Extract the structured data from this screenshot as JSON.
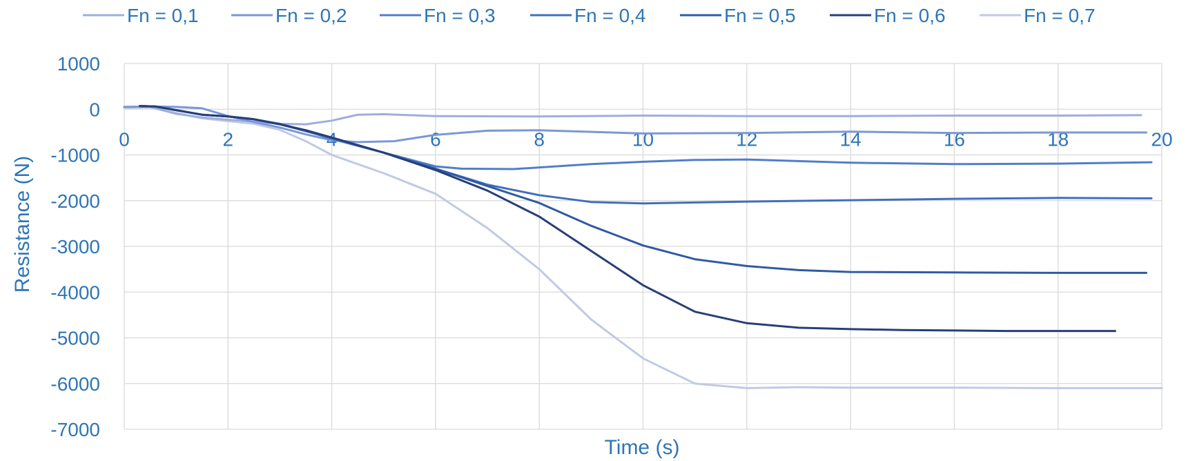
{
  "chart_data": {
    "type": "line",
    "title": "",
    "xlabel": "Time (s)",
    "ylabel": "Resistance (N)",
    "xlim": [
      0,
      20
    ],
    "ylim": [
      -7000,
      1000
    ],
    "x_ticks": [
      0,
      2,
      4,
      6,
      8,
      10,
      12,
      14,
      16,
      18,
      20
    ],
    "y_ticks": [
      1000,
      0,
      -1000,
      -2000,
      -3000,
      -4000,
      -5000,
      -6000,
      -7000
    ],
    "y_tick_labels": [
      "1000",
      "0",
      "-1000",
      "-2000",
      "-3000",
      "-4000",
      "-5000",
      "-6000",
      "-7000"
    ],
    "grid": true,
    "legend_position": "top",
    "series": [
      {
        "name": "Fn = 0,1",
        "color": "#9eaedc",
        "points": [
          [
            0,
            50
          ],
          [
            0.5,
            50
          ],
          [
            1,
            -100
          ],
          [
            1.5,
            -180
          ],
          [
            2,
            -230
          ],
          [
            2.5,
            -270
          ],
          [
            3,
            -320
          ],
          [
            3.5,
            -330
          ],
          [
            4,
            -250
          ],
          [
            4.5,
            -120
          ],
          [
            5,
            -110
          ],
          [
            6,
            -150
          ],
          [
            8,
            -160
          ],
          [
            10,
            -140
          ],
          [
            12,
            -150
          ],
          [
            14,
            -150
          ],
          [
            16,
            -140
          ],
          [
            18,
            -140
          ],
          [
            19.6,
            -130
          ]
        ]
      },
      {
        "name": "Fn = 0,2",
        "color": "#7a97d6",
        "points": [
          [
            0,
            50
          ],
          [
            0.5,
            60
          ],
          [
            1,
            50
          ],
          [
            1.5,
            20
          ],
          [
            2,
            -150
          ],
          [
            2.5,
            -280
          ],
          [
            3,
            -400
          ],
          [
            3.5,
            -550
          ],
          [
            4,
            -680
          ],
          [
            4.5,
            -720
          ],
          [
            5.2,
            -700
          ],
          [
            6,
            -560
          ],
          [
            7,
            -470
          ],
          [
            8,
            -460
          ],
          [
            10,
            -530
          ],
          [
            12,
            -520
          ],
          [
            14,
            -490
          ],
          [
            16,
            -520
          ],
          [
            18,
            -510
          ],
          [
            19.7,
            -510
          ]
        ]
      },
      {
        "name": "Fn = 0,3",
        "color": "#4f7fcb",
        "points": [
          [
            0.3,
            70
          ],
          [
            0.6,
            60
          ],
          [
            1,
            -20
          ],
          [
            1.5,
            -120
          ],
          [
            2,
            -160
          ],
          [
            2.5,
            -220
          ],
          [
            3,
            -320
          ],
          [
            3.5,
            -470
          ],
          [
            4,
            -650
          ],
          [
            5,
            -950
          ],
          [
            5.5,
            -1100
          ],
          [
            6,
            -1250
          ],
          [
            6.5,
            -1300
          ],
          [
            7.5,
            -1310
          ],
          [
            9,
            -1200
          ],
          [
            10,
            -1150
          ],
          [
            11,
            -1110
          ],
          [
            12,
            -1100
          ],
          [
            14,
            -1170
          ],
          [
            16,
            -1200
          ],
          [
            18,
            -1190
          ],
          [
            19.8,
            -1160
          ]
        ]
      },
      {
        "name": "Fn = 0,4",
        "color": "#3f6fbd",
        "points": [
          [
            0.3,
            70
          ],
          [
            0.6,
            60
          ],
          [
            1,
            -20
          ],
          [
            1.5,
            -120
          ],
          [
            2,
            -160
          ],
          [
            2.5,
            -220
          ],
          [
            3,
            -330
          ],
          [
            3.5,
            -480
          ],
          [
            4,
            -640
          ],
          [
            5,
            -950
          ],
          [
            6,
            -1300
          ],
          [
            7,
            -1650
          ],
          [
            8,
            -1880
          ],
          [
            9,
            -2030
          ],
          [
            10,
            -2060
          ],
          [
            11,
            -2040
          ],
          [
            12,
            -2020
          ],
          [
            14,
            -1990
          ],
          [
            16,
            -1960
          ],
          [
            18,
            -1940
          ],
          [
            19.8,
            -1950
          ]
        ]
      },
      {
        "name": "Fn = 0,5",
        "color": "#2f5aa3",
        "points": [
          [
            0.3,
            70
          ],
          [
            0.6,
            60
          ],
          [
            1,
            -20
          ],
          [
            1.5,
            -120
          ],
          [
            2,
            -160
          ],
          [
            2.5,
            -220
          ],
          [
            3,
            -330
          ],
          [
            3.5,
            -470
          ],
          [
            4,
            -620
          ],
          [
            5,
            -950
          ],
          [
            6,
            -1300
          ],
          [
            7,
            -1680
          ],
          [
            8,
            -2050
          ],
          [
            9,
            -2550
          ],
          [
            10,
            -2980
          ],
          [
            11,
            -3280
          ],
          [
            12,
            -3430
          ],
          [
            13,
            -3520
          ],
          [
            14,
            -3560
          ],
          [
            16,
            -3570
          ],
          [
            18,
            -3580
          ],
          [
            19.7,
            -3580
          ]
        ]
      },
      {
        "name": "Fn = 0,6",
        "color": "#263f78",
        "points": [
          [
            0.3,
            70
          ],
          [
            0.6,
            60
          ],
          [
            1,
            -20
          ],
          [
            1.5,
            -120
          ],
          [
            2,
            -160
          ],
          [
            2.5,
            -220
          ],
          [
            3,
            -330
          ],
          [
            3.5,
            -460
          ],
          [
            4,
            -620
          ],
          [
            5,
            -950
          ],
          [
            6,
            -1330
          ],
          [
            7,
            -1780
          ],
          [
            8,
            -2350
          ],
          [
            9,
            -3100
          ],
          [
            10,
            -3850
          ],
          [
            11,
            -4430
          ],
          [
            12,
            -4680
          ],
          [
            13,
            -4780
          ],
          [
            14,
            -4810
          ],
          [
            15,
            -4830
          ],
          [
            16,
            -4840
          ],
          [
            17,
            -4850
          ],
          [
            18,
            -4850
          ],
          [
            19.1,
            -4850
          ]
        ]
      },
      {
        "name": "Fn = 0,7",
        "color": "#c0c9e6",
        "points": [
          [
            0,
            30
          ],
          [
            0.5,
            40
          ],
          [
            1,
            -80
          ],
          [
            1.5,
            -200
          ],
          [
            2,
            -260
          ],
          [
            2.5,
            -320
          ],
          [
            3,
            -450
          ],
          [
            3.5,
            -700
          ],
          [
            4,
            -1000
          ],
          [
            5,
            -1400
          ],
          [
            6,
            -1850
          ],
          [
            7,
            -2600
          ],
          [
            8,
            -3500
          ],
          [
            9,
            -4600
          ],
          [
            10,
            -5450
          ],
          [
            11,
            -6000
          ],
          [
            12,
            -6100
          ],
          [
            13,
            -6080
          ],
          [
            14,
            -6090
          ],
          [
            16,
            -6090
          ],
          [
            18,
            -6100
          ],
          [
            20,
            -6100
          ]
        ]
      }
    ]
  }
}
